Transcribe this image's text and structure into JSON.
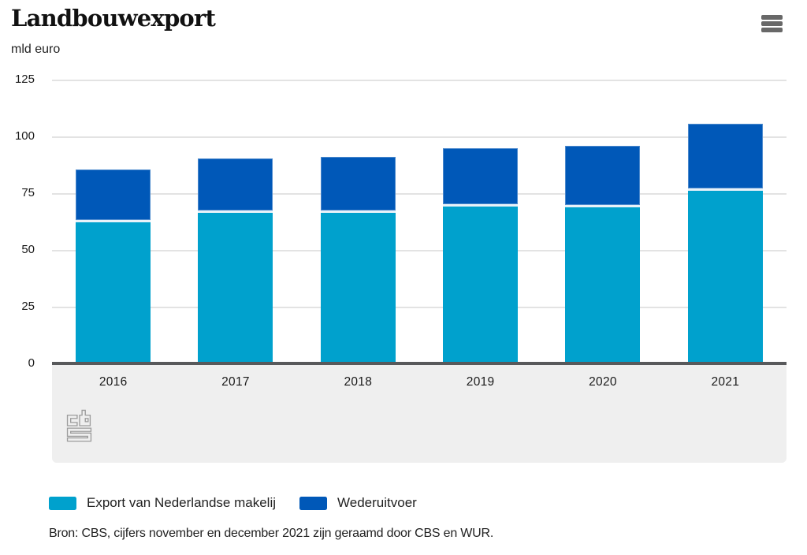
{
  "header": {
    "title": "Landbouwexport",
    "unit_label": "mld euro"
  },
  "menu": {
    "icon": "hamburger-menu"
  },
  "chart_data": {
    "type": "bar",
    "stacked": true,
    "title": "Landbouwexport",
    "ylabel": "mld euro",
    "xlabel": "",
    "ylim": [
      0,
      125
    ],
    "yticks": [
      125,
      100,
      75,
      50,
      25,
      0
    ],
    "grid": true,
    "legend_position": "bottom",
    "categories": [
      "2016",
      "2017",
      "2018",
      "2019",
      "2020",
      "2021"
    ],
    "series": [
      {
        "name": "Export van Nederlandse makelij",
        "color": "#00a1cd",
        "values": [
          61.4,
          65.5,
          65.5,
          68.4,
          68.2,
          75.5
        ]
      },
      {
        "name": "Wederuitvoer",
        "color": "#0058b8",
        "values": [
          23.4,
          24.2,
          24.9,
          25.8,
          27.1,
          29.2
        ]
      }
    ],
    "totals": [
      84.8,
      89.7,
      90.4,
      94.2,
      95.3,
      104.7
    ]
  },
  "source": {
    "text": "Bron: CBS, cijfers november en december 2021 zijn geraamd door CBS en WUR."
  },
  "branding": {
    "logo": "cbs-logo"
  },
  "colors": {
    "background": "#ffffff",
    "text": "#222222",
    "gridline": "#e3e3e3",
    "axis_line": "#58595b",
    "band_background": "#efefef",
    "segment_separator": "#e8f2f9",
    "menu_icon": "#686868",
    "logo": "#9c9c9c"
  }
}
